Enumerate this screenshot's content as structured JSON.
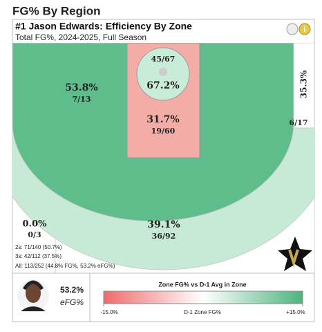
{
  "title": "FG% By Region",
  "header": {
    "title": "#1 Jason Edwards: Efficiency By Zone",
    "subtitle": "Total FG%, 2024-2025, Full Season"
  },
  "chart_data": {
    "type": "shot-chart",
    "zones": [
      {
        "pct": 67.2,
        "pct_label": "67.2%",
        "shots": "45/67",
        "color": "#c9ecd8"
      },
      {
        "pct": 31.7,
        "pct_label": "31.7%",
        "shots": "19/60",
        "color": "#f3aca6"
      },
      {
        "pct": 53.8,
        "pct_label": "53.8%",
        "shots": "7/13",
        "color": "#5fbc8b"
      },
      {
        "pct": 35.3,
        "pct_label": "35.3%",
        "shots": "6/17",
        "color": "#ffffff"
      },
      {
        "pct": 39.1,
        "pct_label": "39.1%",
        "shots": "36/92",
        "color": "#c6ead6"
      },
      {
        "pct": 0.0,
        "pct_label": "0.0%",
        "shots": "0/3",
        "color": "#ffffff"
      }
    ],
    "summary": [
      "2s: 71/140 (50.7%)",
      "3s: 42/112 (37.5%)",
      "All: 113/252 (44.8% FG%, 53.2% eFG%)"
    ],
    "player": {
      "efg": 53.2,
      "efg_label": "53.2%",
      "efg_caption": "eFG%"
    },
    "colorbar": {
      "title": "Zone FG% vs D-1 Avg in Zone",
      "label": "D-1 Zone FG%",
      "lim": [
        -15,
        15
      ],
      "ticks": [
        {
          "value": -15,
          "label": "-15.0%"
        },
        {
          "value": 15,
          "label": "+15.0%"
        }
      ],
      "colors": [
        "#ee6b6b",
        "#ffffff",
        "#4db37e"
      ]
    }
  }
}
